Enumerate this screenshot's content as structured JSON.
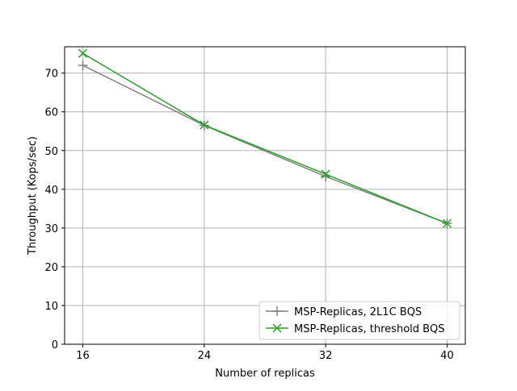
{
  "chart_data": {
    "type": "line",
    "title": "",
    "xlabel": "Number of replicas",
    "ylabel": "Throughput (Kops/sec)",
    "x": [
      16,
      24,
      32,
      40
    ],
    "xticks": [
      "16",
      "24",
      "32",
      "40"
    ],
    "xlim": [
      14.8,
      41.2
    ],
    "ylim": [
      0,
      76.8
    ],
    "yticks": [
      0,
      10,
      20,
      30,
      40,
      50,
      60,
      70
    ],
    "grid": true,
    "legend": {
      "position": "lower-right"
    },
    "series": [
      {
        "name": "MSP-Replicas, 2L1C BQS",
        "color": "#808080",
        "marker": "plus",
        "values": [
          72.0,
          56.5,
          43.3,
          31.2
        ]
      },
      {
        "name": "MSP-Replicas, threshold BQS",
        "color": "#2ca02c",
        "marker": "x",
        "values": [
          75.1,
          56.6,
          43.9,
          31.2
        ]
      }
    ]
  }
}
